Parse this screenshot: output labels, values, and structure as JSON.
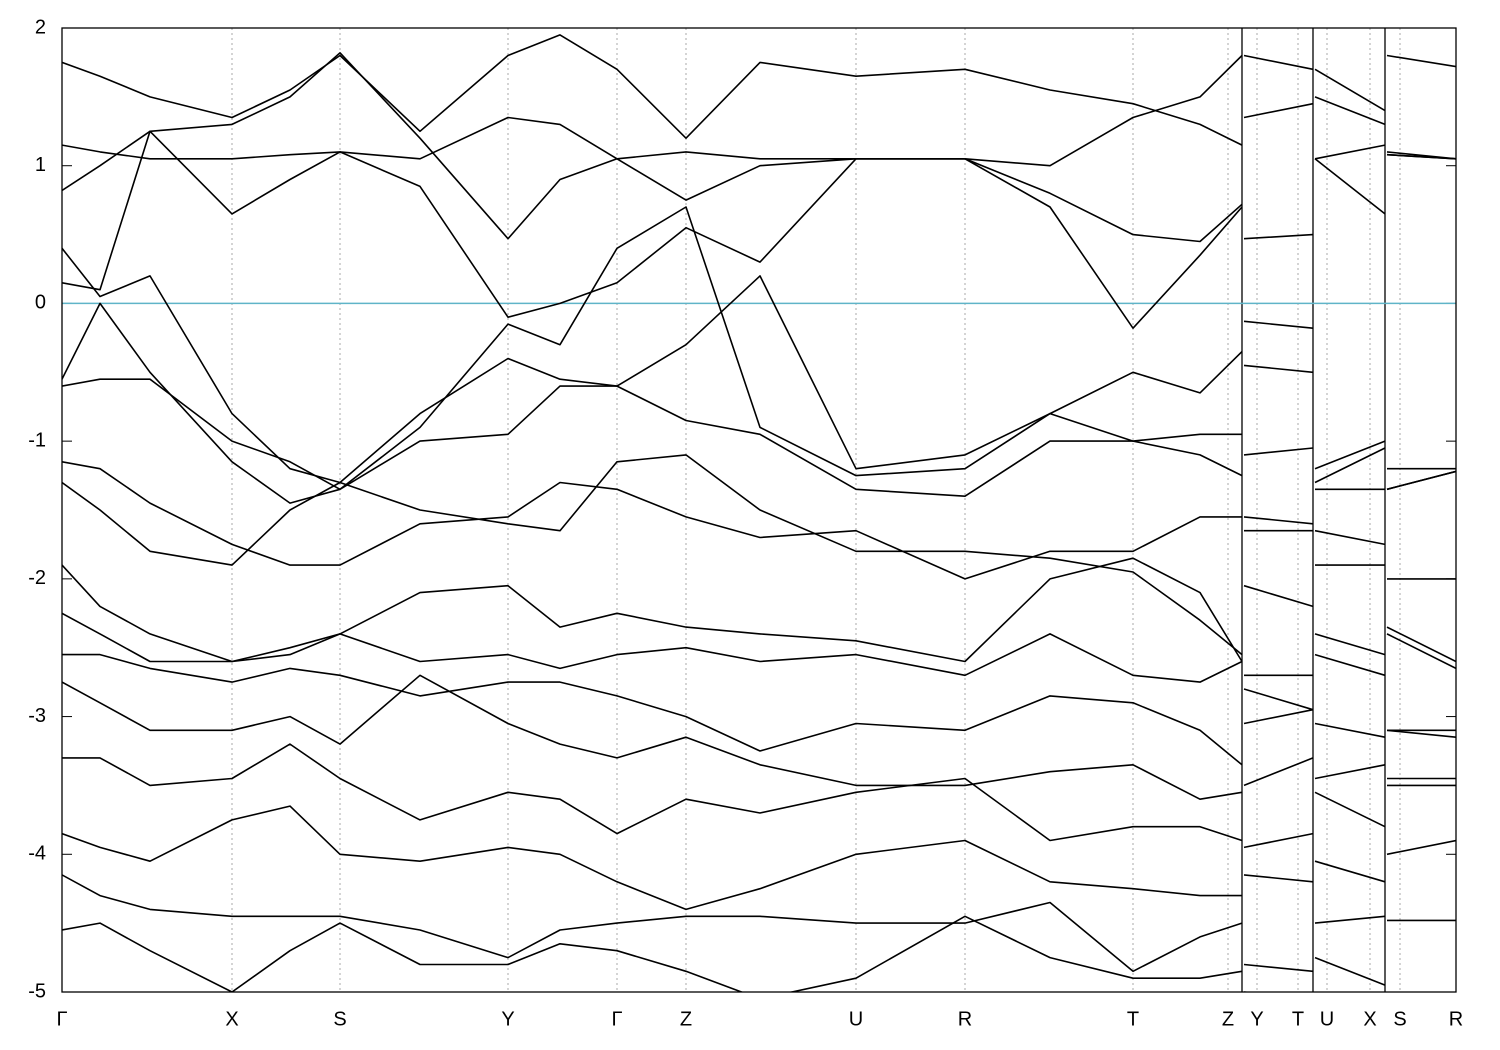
{
  "chart_data": {
    "type": "line",
    "x": [
      0,
      0.38,
      0.88,
      1.7,
      2.28,
      2.78,
      3.58,
      4.46,
      4.98,
      5.55,
      6.24,
      6.98,
      7.94,
      9.03,
      9.88,
      10.71,
      11.38,
      11.8,
      11.81,
      11.82,
      12.51,
      12.52,
      12.53,
      13.23,
      13.24,
      13.25,
      13.94
    ],
    "xlim": [
      0,
      13.94
    ],
    "xticks": [
      {
        "value": 0,
        "label": "Γ"
      },
      {
        "value": 1.7,
        "label": "X"
      },
      {
        "value": 2.78,
        "label": "S"
      },
      {
        "value": 4.46,
        "label": "Y"
      },
      {
        "value": 5.55,
        "label": "Γ"
      },
      {
        "value": 6.24,
        "label": "Z"
      },
      {
        "value": 7.94,
        "label": "U"
      },
      {
        "value": 9.03,
        "label": "R"
      },
      {
        "value": 10.71,
        "label": "T"
      },
      {
        "value": 11.66,
        "label": "Z"
      },
      {
        "value": 11.95,
        "label": "Y"
      },
      {
        "value": 12.36,
        "label": "T"
      },
      {
        "value": 12.65,
        "label": "U"
      },
      {
        "value": 13.08,
        "label": "X"
      },
      {
        "value": 13.38,
        "label": "S"
      },
      {
        "value": 13.94,
        "label": "R"
      }
    ],
    "breaks": [
      11.8,
      12.51,
      13.23
    ],
    "ylim": [
      -5,
      2
    ],
    "yticks": [
      2,
      1,
      0,
      -1,
      -2,
      -3,
      -4,
      -5
    ],
    "grid": true,
    "fermi_level": 0,
    "fermi_color": "#5fb4c8",
    "series": [
      {
        "color": "#000000",
        "values": [
          1.75,
          1.65,
          1.5,
          1.35,
          1.55,
          1.8,
          1.25,
          1.8,
          1.95,
          1.7,
          1.2,
          1.75,
          1.65,
          1.7,
          1.55,
          1.45,
          1.3,
          1.15,
          null,
          1.8,
          1.7,
          null,
          1.7,
          1.4,
          null,
          1.8,
          1.72
        ]
      },
      {
        "color": "#000000",
        "values": [
          1.15,
          1.1,
          1.05,
          1.05,
          1.08,
          1.1,
          1.05,
          1.35,
          1.3,
          1.05,
          1.1,
          1.05,
          1.05,
          1.05,
          0.8,
          0.5,
          0.45,
          0.72,
          null,
          0.47,
          0.5,
          null,
          1.05,
          1.15,
          null,
          1.1,
          1.05
        ]
      },
      {
        "color": "#000000",
        "values": [
          0.82,
          1.0,
          1.25,
          1.3,
          1.5,
          1.82,
          1.2,
          0.47,
          0.9,
          1.05,
          0.75,
          1.0,
          1.05,
          1.05,
          1.0,
          1.35,
          1.5,
          1.8,
          null,
          1.35,
          1.45,
          null,
          1.5,
          1.3,
          null,
          1.08,
          1.05
        ]
      },
      {
        "color": "#000000",
        "values": [
          0.4,
          0.05,
          0.2,
          -0.8,
          -1.2,
          -1.3,
          -0.8,
          -0.4,
          -0.55,
          -0.6,
          -0.3,
          0.2,
          -1.2,
          -1.1,
          -0.8,
          -0.5,
          -0.65,
          -0.35,
          null,
          -0.45,
          -0.5,
          null,
          -1.2,
          -1.0,
          null,
          -1.35,
          -1.22
        ]
      },
      {
        "color": "#000000",
        "values": [
          0.15,
          0.1,
          1.25,
          0.65,
          0.9,
          1.1,
          0.85,
          -0.1,
          0.0,
          0.15,
          0.55,
          0.3,
          1.05,
          1.05,
          0.7,
          -0.18,
          0.35,
          0.7,
          null,
          -0.13,
          -0.18,
          null,
          1.05,
          0.65,
          null,
          1.08,
          1.05
        ]
      },
      {
        "color": "#000000",
        "values": [
          -0.55,
          0.0,
          -0.5,
          -1.15,
          -1.45,
          -1.35,
          -0.9,
          -0.15,
          -0.3,
          0.4,
          0.7,
          -0.9,
          -1.25,
          -1.2,
          -0.8,
          -1.0,
          -0.95,
          -0.95,
          null,
          -1.1,
          -1.05,
          null,
          -1.3,
          -1.05,
          null,
          -1.2,
          -1.2
        ]
      },
      {
        "color": "#000000",
        "values": [
          -0.6,
          -0.55,
          -0.55,
          -1.0,
          -1.15,
          -1.35,
          -1.0,
          -0.95,
          -0.6,
          -0.6,
          -0.85,
          -0.95,
          -1.35,
          -1.4,
          -1.0,
          -1.0,
          -1.1,
          -1.25,
          null,
          -1.55,
          -1.6,
          null,
          -1.35,
          -1.35,
          null,
          -1.35,
          -1.22
        ]
      },
      {
        "color": "#000000",
        "values": [
          -1.15,
          -1.2,
          -1.45,
          -1.75,
          -1.9,
          -1.9,
          -1.6,
          -1.55,
          -1.3,
          -1.35,
          -1.55,
          -1.7,
          -1.65,
          -2.0,
          -1.8,
          -1.8,
          -1.55,
          -1.55,
          null,
          -1.65,
          -1.65,
          null,
          -1.65,
          -1.75,
          null,
          -2.0,
          -2.0
        ]
      },
      {
        "color": "#000000",
        "values": [
          -1.3,
          -1.5,
          -1.8,
          -1.9,
          -1.5,
          -1.3,
          -1.5,
          -1.6,
          -1.65,
          -1.15,
          -1.1,
          -1.5,
          -1.8,
          -1.8,
          -1.85,
          -1.95,
          -2.3,
          -2.55,
          null,
          -2.05,
          -2.2,
          null,
          -1.9,
          -1.9,
          null,
          -2.35,
          -2.6
        ]
      },
      {
        "color": "#000000",
        "values": [
          -1.9,
          -2.2,
          -2.4,
          -2.6,
          -2.5,
          -2.4,
          -2.1,
          -2.05,
          -2.35,
          -2.25,
          -2.35,
          -2.4,
          -2.45,
          -2.6,
          -2.0,
          -1.85,
          -2.1,
          -2.6,
          null,
          -2.7,
          -2.7,
          null,
          -2.4,
          -2.55,
          null,
          -2.4,
          -2.65
        ]
      },
      {
        "color": "#000000",
        "values": [
          -2.25,
          -2.4,
          -2.6,
          -2.6,
          -2.55,
          -2.4,
          -2.6,
          -2.55,
          -2.65,
          -2.55,
          -2.5,
          -2.6,
          -2.55,
          -2.7,
          -2.4,
          -2.7,
          -2.75,
          -2.6,
          null,
          -3.05,
          -2.95,
          null,
          -2.55,
          -2.7,
          null,
          -3.1,
          -3.1
        ]
      },
      {
        "color": "#000000",
        "values": [
          -2.55,
          -2.55,
          -2.65,
          -2.75,
          -2.65,
          -2.7,
          -2.85,
          -2.75,
          -2.75,
          -2.85,
          -3.0,
          -3.25,
          -3.05,
          -3.1,
          -2.85,
          -2.9,
          -3.1,
          -3.35,
          null,
          -2.8,
          -2.95,
          null,
          -3.05,
          -3.15,
          null,
          -3.1,
          -3.15
        ]
      },
      {
        "color": "#000000",
        "values": [
          -2.75,
          -2.9,
          -3.1,
          -3.1,
          -3.0,
          -3.2,
          -2.7,
          -3.05,
          -3.2,
          -3.3,
          -3.15,
          -3.35,
          -3.5,
          -3.5,
          -3.4,
          -3.35,
          -3.6,
          -3.55,
          null,
          -3.5,
          -3.3,
          null,
          -3.45,
          -3.35,
          null,
          -3.45,
          -3.45
        ]
      },
      {
        "color": "#000000",
        "values": [
          -3.3,
          -3.3,
          -3.5,
          -3.45,
          -3.2,
          -3.45,
          -3.75,
          -3.55,
          -3.6,
          -3.85,
          -3.6,
          -3.7,
          -3.55,
          -3.45,
          -3.9,
          -3.8,
          -3.8,
          -3.9,
          null,
          -3.95,
          -3.85,
          null,
          -3.55,
          -3.8,
          null,
          -3.5,
          -3.5
        ]
      },
      {
        "color": "#000000",
        "values": [
          -3.85,
          -3.95,
          -4.05,
          -3.75,
          -3.65,
          -4.0,
          -4.05,
          -3.95,
          -4.0,
          -4.2,
          -4.4,
          -4.25,
          -4.0,
          -3.9,
          -4.2,
          -4.25,
          -4.3,
          -4.3,
          null,
          -4.15,
          -4.2,
          null,
          -4.05,
          -4.2,
          null,
          -4.0,
          -3.9
        ]
      },
      {
        "color": "#000000",
        "values": [
          -4.15,
          -4.3,
          -4.4,
          -4.45,
          -4.45,
          -4.45,
          -4.55,
          -4.75,
          -4.55,
          -4.5,
          -4.45,
          -4.45,
          -4.5,
          -4.5,
          -4.35,
          -4.85,
          -4.6,
          -4.5,
          null,
          -4.8,
          -4.85,
          null,
          -4.5,
          -4.45,
          null,
          -4.48,
          -4.48
        ]
      },
      {
        "color": "#000000",
        "values": [
          -4.55,
          -4.5,
          -4.7,
          -5.0,
          -4.7,
          -4.5,
          -4.8,
          -4.8,
          -4.65,
          -4.7,
          -4.85,
          -5.05,
          -4.9,
          -4.45,
          -4.75,
          -4.9,
          -4.9,
          -4.85,
          null,
          -5.0,
          -5.05,
          null,
          -4.75,
          -4.95,
          null,
          -5.05,
          -5.05
        ]
      }
    ]
  }
}
